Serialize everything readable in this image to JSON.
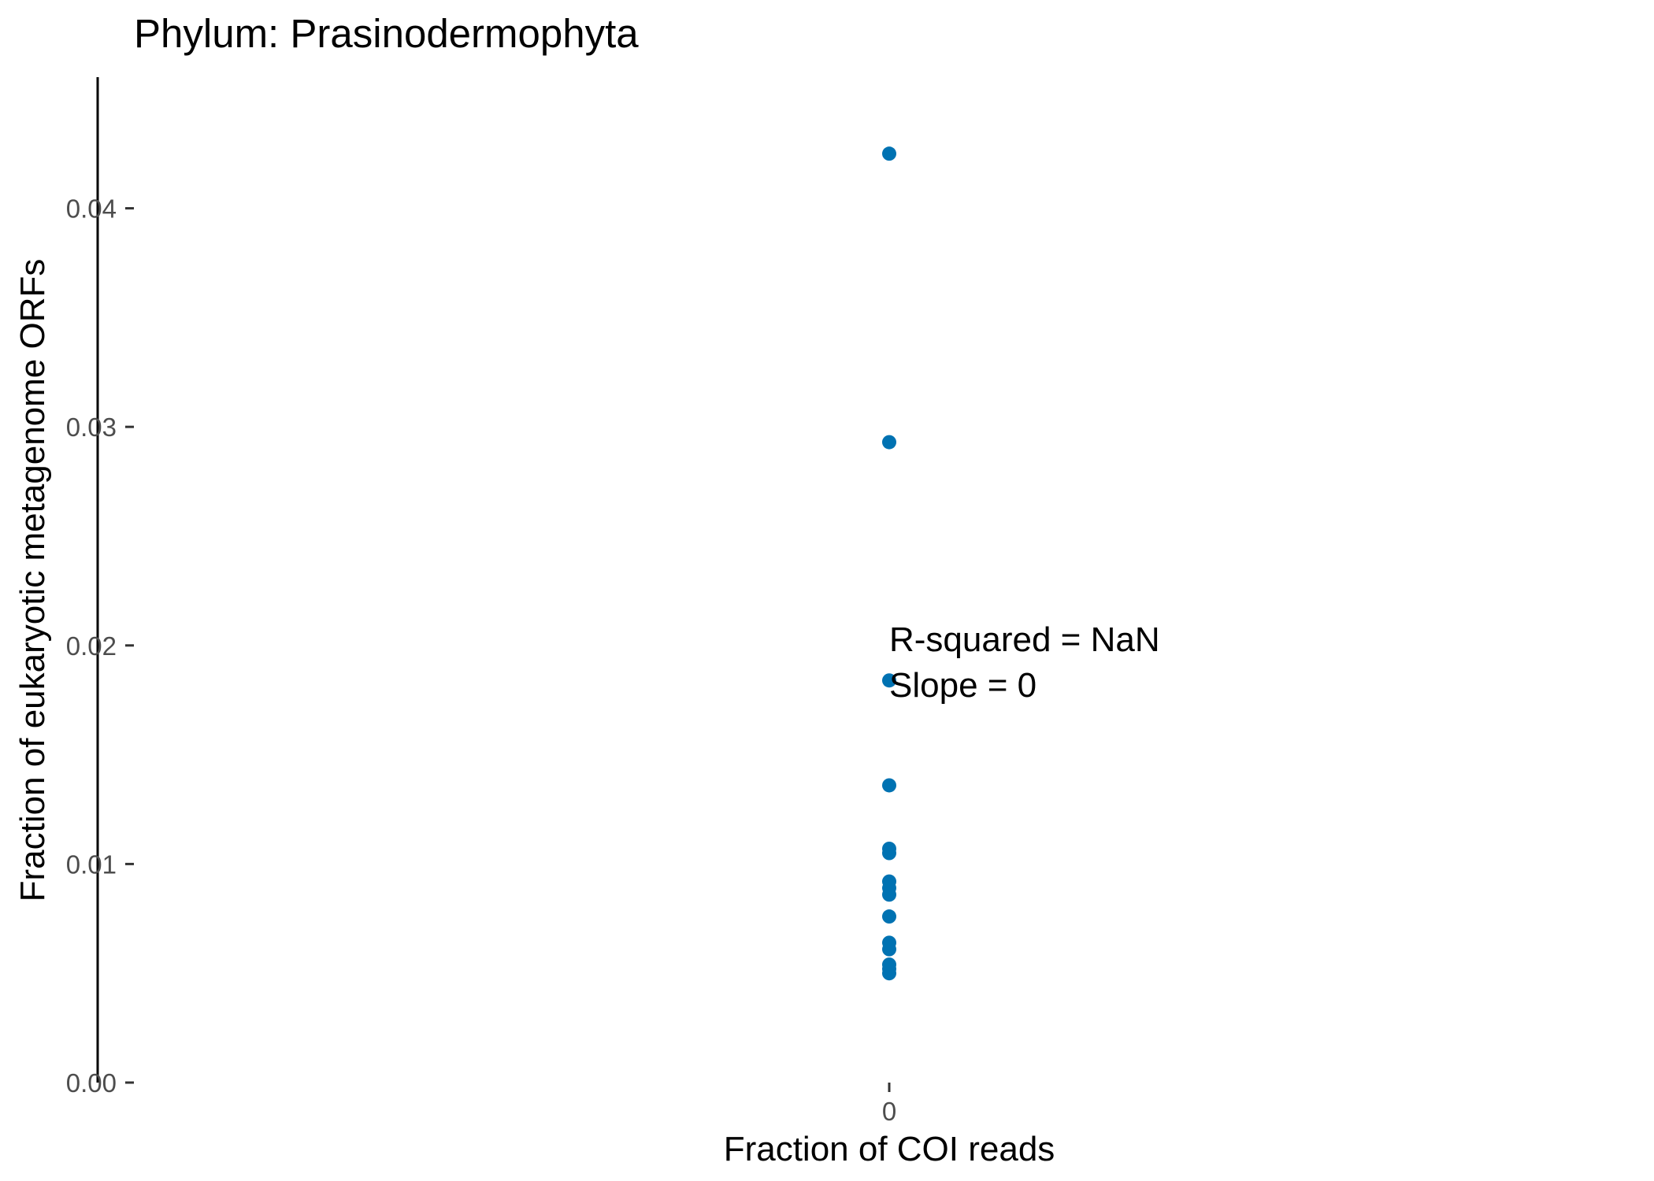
{
  "chart_data": {
    "type": "scatter",
    "title": "Phylum:  Prasinodermophyta",
    "xlabel": "Fraction of COI reads",
    "ylabel": "Fraction of eukaryotic metagenome ORFs",
    "xlim": [
      -1,
      1
    ],
    "ylim": [
      0,
      0.046
    ],
    "x_ticks": [
      0
    ],
    "x_tick_labels": [
      "0"
    ],
    "y_ticks": [
      0,
      0.01,
      0.02,
      0.03,
      0.04
    ],
    "y_tick_labels": [
      "0.00",
      "0.01",
      "0.02",
      "0.03",
      "0.04"
    ],
    "grid": false,
    "legend": "none",
    "point_color": "#0072B2",
    "points": [
      {
        "x": 0,
        "y": 0.0425
      },
      {
        "x": 0,
        "y": 0.0293
      },
      {
        "x": 0,
        "y": 0.0184
      },
      {
        "x": 0,
        "y": 0.0136
      },
      {
        "x": 0,
        "y": 0.0107
      },
      {
        "x": 0,
        "y": 0.0105
      },
      {
        "x": 0,
        "y": 0.0092
      },
      {
        "x": 0,
        "y": 0.0089
      },
      {
        "x": 0,
        "y": 0.0086
      },
      {
        "x": 0,
        "y": 0.0076
      },
      {
        "x": 0,
        "y": 0.0064
      },
      {
        "x": 0,
        "y": 0.0061
      },
      {
        "x": 0,
        "y": 0.0054
      },
      {
        "x": 0,
        "y": 0.0052
      },
      {
        "x": 0,
        "y": 0.005
      }
    ],
    "annotations": [
      "R-squared =  NaN",
      "Slope =  0"
    ]
  }
}
